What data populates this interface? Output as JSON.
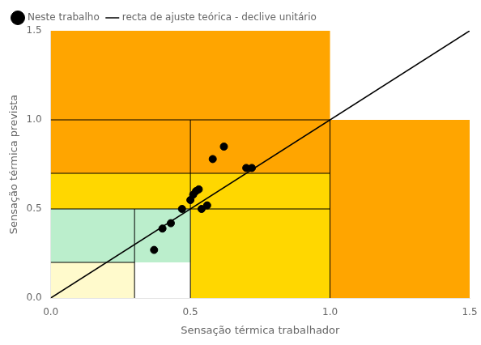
{
  "chart_data": {
    "type": "scatter",
    "title": "",
    "xlabel": "Sensação térmica trabalhador",
    "ylabel": "Sensação térmica prevista",
    "xlim": [
      0.0,
      1.5
    ],
    "ylim": [
      0.0,
      1.5
    ],
    "xticks": [
      {
        "value": 0,
        "label": "0.0"
      },
      0.5,
      {
        "value": 1,
        "label": "1.0"
      },
      1.5
    ],
    "yticks": [
      {
        "value": 0,
        "label": "0.0"
      },
      0.5,
      {
        "value": 1,
        "label": "1.0"
      },
      1.5
    ],
    "grid": false,
    "legend": "upper left",
    "series": [
      {
        "name": "Neste trabalho",
        "type": "scatter",
        "color": "#000000",
        "marker": "circle",
        "x": [
          0.37,
          0.4,
          0.43,
          0.47,
          0.5,
          0.51,
          0.52,
          0.53,
          0.54,
          0.56,
          0.58,
          0.62,
          0.7,
          0.72
        ],
        "values": [
          0.27,
          0.39,
          0.42,
          0.5,
          0.55,
          0.58,
          0.6,
          0.61,
          0.5,
          0.52,
          0.78,
          0.85,
          0.73,
          0.73
        ]
      },
      {
        "name": "recta de ajuste teórica - declive unitário",
        "type": "line",
        "color": "#000000",
        "line_style": "solid",
        "x": [
          0.0,
          1.5
        ],
        "values": [
          0.0,
          1.5
        ]
      }
    ],
    "regions": [
      {
        "x": 0.0,
        "y": 0.0,
        "w": 0.3,
        "h": 0.2,
        "color": "#FFFACC"
      },
      {
        "x": 0.0,
        "y": 0.2,
        "w": 0.5,
        "h": 0.3,
        "color": "#BBEECC"
      },
      {
        "x": 0.0,
        "y": 0.5,
        "w": 1.0,
        "h": 0.2,
        "color": "#FFD700"
      },
      {
        "x": 0.5,
        "y": 0.0,
        "w": 0.5,
        "h": 0.5,
        "color": "#FFD700"
      },
      {
        "x": 0.0,
        "y": 0.7,
        "w": 1.0,
        "h": 0.3,
        "color": "#FFA500"
      },
      {
        "x": 0.0,
        "y": 1.0,
        "w": 1.0,
        "h": 0.5,
        "color": "#FFA500"
      },
      {
        "x": 1.0,
        "y": 0.0,
        "w": 0.5,
        "h": 1.0,
        "color": "#FFA500"
      }
    ],
    "borders": {
      "color": "#000000",
      "vlines": [
        {
          "x": 0.3,
          "ymin": 0.0,
          "ymax": 0.5
        },
        {
          "x": 0.5,
          "ymin": 0.0,
          "ymax": 1.0
        },
        {
          "x": 1.0,
          "ymin": 0.0,
          "ymax": 1.0
        }
      ],
      "hlines": [
        {
          "y": 0.2,
          "xmin": 0.0,
          "xmax": 0.3
        },
        {
          "y": 0.5,
          "xmin": 0.0,
          "xmax": 1.0
        },
        {
          "y": 0.7,
          "xmin": 0.0,
          "xmax": 1.0
        },
        {
          "y": 1.0,
          "xmin": 0.0,
          "xmax": 1.0
        }
      ]
    }
  }
}
